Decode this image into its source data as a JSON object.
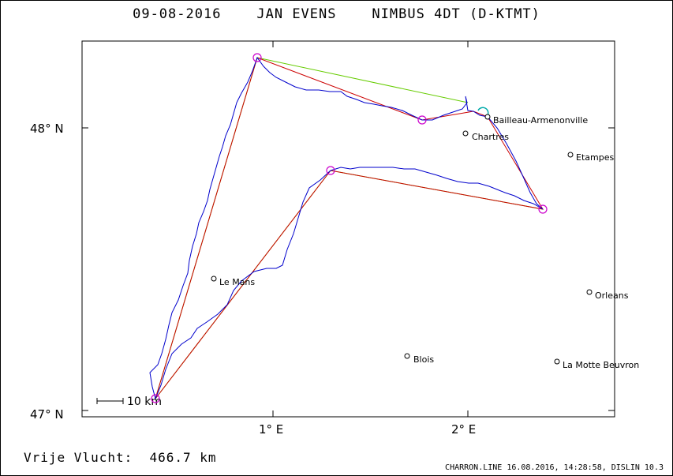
{
  "header": {
    "title": "09-08-2016    JAN EVENS    NIMBUS 4DT (D-KTMT)"
  },
  "axes": {
    "y_labels": [
      "48° N",
      "47° N"
    ],
    "x_labels": [
      "1° E",
      "2° E"
    ]
  },
  "scale_bar": {
    "label": "10 km"
  },
  "cities": [
    {
      "name": "Bailleau-Armenonville",
      "lon": 2.1,
      "lat": 48.04
    },
    {
      "name": "Chartres",
      "lon": 1.99,
      "lat": 47.98
    },
    {
      "name": "Etampes",
      "lon": 2.53,
      "lat": 47.92
    },
    {
      "name": "Le Mans",
      "lon": 0.69,
      "lat": 47.47
    },
    {
      "name": "Orleans",
      "lon": 2.62,
      "lat": 47.43
    },
    {
      "name": "Blois",
      "lon": 1.69,
      "lat": 47.2
    },
    {
      "name": "La Motte Beuvron",
      "lon": 2.46,
      "lat": 47.18
    }
  ],
  "turnpoints": [
    {
      "lon": 0.92,
      "lat": 48.25
    },
    {
      "lon": 1.77,
      "lat": 48.03
    },
    {
      "lon": 2.41,
      "lat": 47.72
    },
    {
      "lon": 1.3,
      "lat": 47.85
    },
    {
      "lon": 0.38,
      "lat": 47.05
    }
  ],
  "footer": {
    "distance": "Vrije Vlucht:  466.7 km",
    "credits": "CHARRON.LINE 16.08.2016, 14:28:58, DISLIN 10.3"
  },
  "colors": {
    "track": "#0000cc",
    "task": "#cc0000",
    "optimized": "#66cc00",
    "turnpoint": "#cc00cc",
    "start": "#00aaaa"
  }
}
